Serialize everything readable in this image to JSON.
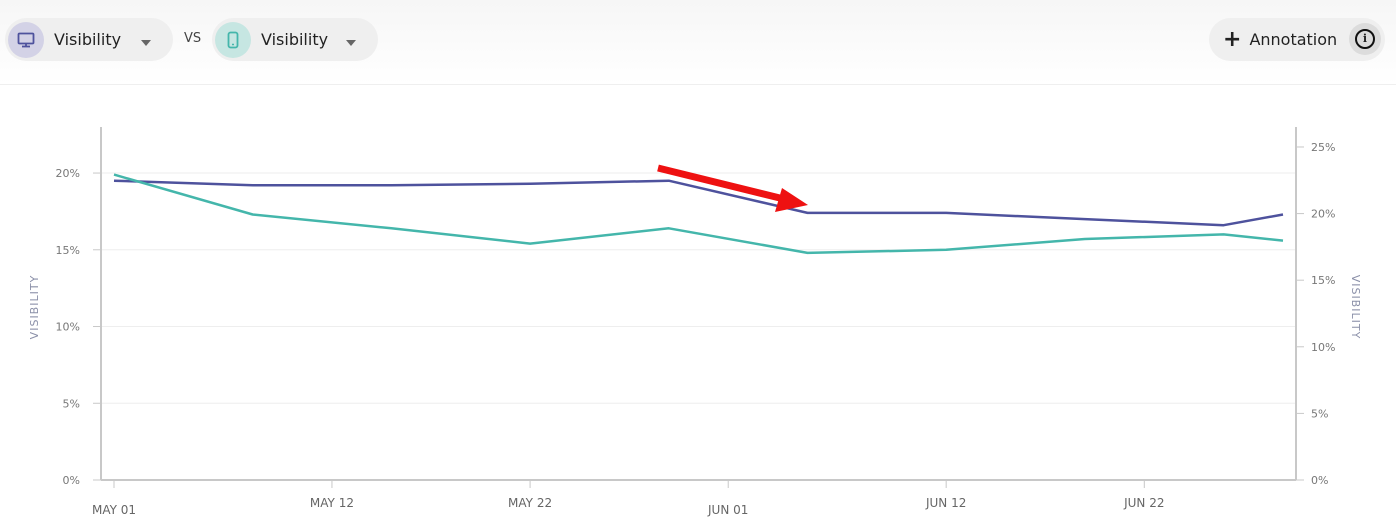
{
  "toolbar": {
    "left_selector": {
      "icon": "desktop-icon",
      "label": "Visibility"
    },
    "vs_label": "VS",
    "right_selector": {
      "icon": "mobile-icon",
      "label": "Visibility"
    },
    "annotation_button": {
      "label": "Annotation",
      "icon": "plus-icon"
    },
    "info_icon": "info-icon"
  },
  "colors": {
    "desktop": "#4e529d",
    "mobile": "#44b6ab",
    "arrow": "#ee1111"
  },
  "chart_data": {
    "type": "line",
    "x_tick_labels": [
      "MAY 01",
      "MAY 12",
      "MAY 22",
      "JUN 01",
      "JUN 12",
      "JUN 22"
    ],
    "x": [
      "May 01",
      "May 08",
      "May 15",
      "May 22",
      "May 29",
      "Jun 05",
      "Jun 12",
      "Jun 19",
      "Jun 26",
      "Jun 29"
    ],
    "y_left": {
      "label": "VISIBILITY",
      "ticks": [
        "0%",
        "5%",
        "10%",
        "15%",
        "20%"
      ],
      "lim": [
        0,
        23
      ]
    },
    "y_right": {
      "label": "VISIBILITY",
      "ticks": [
        "0%",
        "5%",
        "10%",
        "15%",
        "20%",
        "25%"
      ],
      "lim": [
        0,
        26.5
      ]
    },
    "series": [
      {
        "axis": "left",
        "color": "#4e529d",
        "values": [
          19.5,
          19.2,
          19.2,
          19.3,
          19.5,
          17.4,
          17.4,
          17.0,
          16.6,
          17.3
        ]
      },
      {
        "axis": "left",
        "color": "#44b6ab",
        "values": [
          19.9,
          17.3,
          16.4,
          15.4,
          16.4,
          14.8,
          15.0,
          15.7,
          16.0,
          15.6
        ]
      }
    ],
    "grid": true,
    "annotation": {
      "type": "arrow",
      "color": "#ee1111",
      "points_to": "Jun 05"
    }
  }
}
